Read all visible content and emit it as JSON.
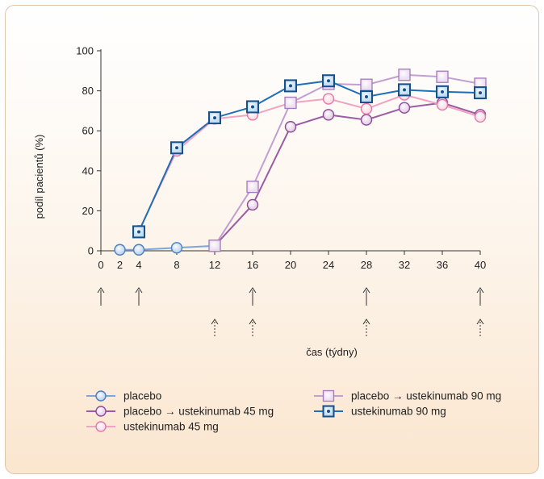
{
  "chart_data": {
    "type": "line",
    "xlabel": "čas (týdny)",
    "ylabel": "podíl pacientů (%)",
    "ylim": [
      0,
      100
    ],
    "yticks": [
      0,
      20,
      40,
      60,
      80,
      100
    ],
    "xlim": [
      0,
      40
    ],
    "xticks": [
      0,
      2,
      4,
      8,
      12,
      16,
      20,
      24,
      28,
      32,
      36,
      40
    ],
    "grid": false,
    "legend_position": "bottom",
    "solid_arrows_at": [
      0,
      4,
      16,
      28,
      40
    ],
    "dashed_arrows_at": [
      12,
      16,
      28,
      40
    ],
    "series": [
      {
        "name": "placebo",
        "marker": "circle",
        "line_color": "#7ea6dc",
        "fill_color": "#b9d2ef",
        "stroke_color": "#4d7fbf",
        "x": [
          2,
          4,
          8,
          12
        ],
        "y": [
          0.5,
          0.5,
          1.5,
          2.5
        ]
      },
      {
        "name": "placebo → ustekinumab 45 mg",
        "marker": "circle",
        "line_color": "#9b5ba5",
        "fill_color": "#e5cbe8",
        "stroke_color": "#8a4d95",
        "x": [
          12,
          16,
          20,
          24,
          28,
          32,
          36,
          40
        ],
        "y": [
          2.5,
          23,
          62,
          68,
          65.5,
          71.5,
          74,
          68
        ]
      },
      {
        "name": "ustekinumab 45 mg",
        "marker": "circle",
        "line_color": "#f0a3c2",
        "fill_color": "#fbd9e6",
        "stroke_color": "#e27aa6",
        "x": [
          4,
          8,
          12,
          16,
          20,
          24,
          28,
          32,
          36,
          40
        ],
        "y": [
          10,
          50,
          66,
          68,
          74,
          76,
          71,
          78,
          73,
          67
        ]
      },
      {
        "name": "placebo → ustekinumab 90 mg",
        "marker": "square",
        "line_color": "#c39ed1",
        "fill_color": "#ecdcf2",
        "stroke_color": "#a47bb8",
        "x": [
          12,
          16,
          20,
          24,
          28,
          32,
          36,
          40
        ],
        "y": [
          2.5,
          32,
          74,
          83.5,
          83,
          88,
          87,
          83.5
        ]
      },
      {
        "name": "ustekinumab 90 mg",
        "marker": "square-dot",
        "line_color": "#1f6fb5",
        "fill_color": "#bdd9f0",
        "stroke_color": "#15508c",
        "x": [
          4,
          8,
          12,
          16,
          20,
          24,
          28,
          32,
          36,
          40
        ],
        "y": [
          9.5,
          51.5,
          66.5,
          72,
          82.5,
          85,
          77,
          80.5,
          79.5,
          79
        ]
      }
    ]
  }
}
